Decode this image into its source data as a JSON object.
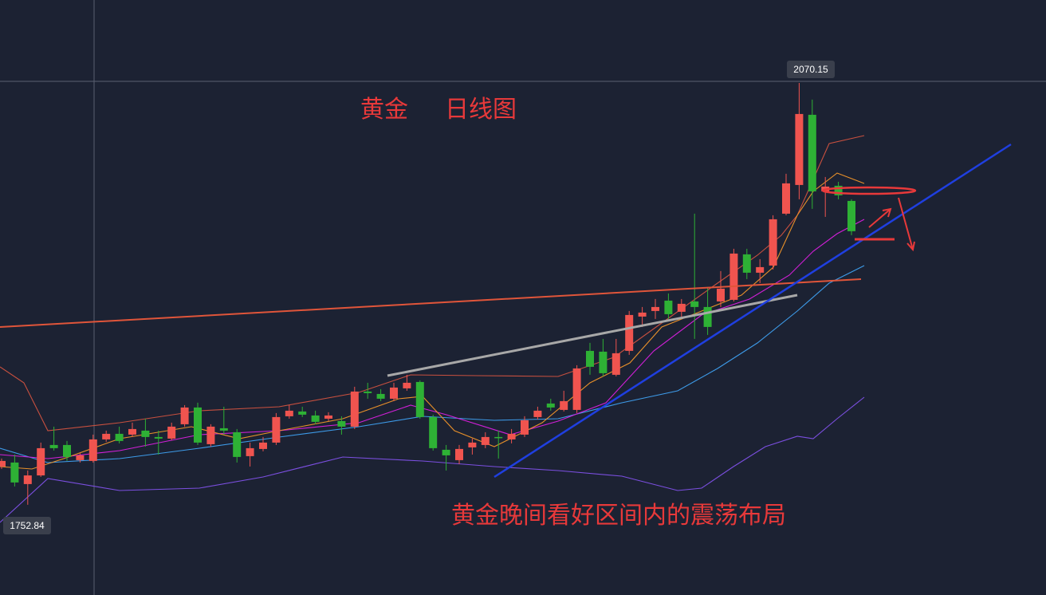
{
  "chart_data": {
    "type": "candlestick",
    "title": "黄金",
    "subtitle": "日线图",
    "annotation": "黄金晚间看好区间内的震荡布局",
    "up_color": "#f0544f",
    "down_color": "#2eb135",
    "ylim": [
      1684.95,
      2132.55
    ],
    "open": [
      1781.6,
      1784.6,
      1768.4,
      1774.9,
      1797.8,
      1797.8,
      1786.4,
      1785.8,
      1802.0,
      1806.2,
      1805.6,
      1808.6,
      1803.8,
      1802.6,
      1813.4,
      1826.0,
      1798.4,
      1810.4,
      1807.4,
      1789.4,
      1794.8,
      1799.6,
      1819.4,
      1823.0,
      1820.0,
      1817.6,
      1815.8,
      1811.6,
      1838.0,
      1836.2,
      1832.6,
      1840.4,
      1845.2,
      1818.8,
      1794.2,
      1786.4,
      1796.0,
      1797.8,
      1803.8,
      1802.0,
      1805.6,
      1818.8,
      1829.0,
      1824.2,
      1824.2,
      1868.6,
      1868.0,
      1850.6,
      1868.6,
      1894.4,
      1898.6,
      1906.4,
      1898.0,
      1905.8,
      1901.6,
      1905.8,
      1907.0,
      1941.2,
      1927.4,
      1932.8,
      1971.8,
      1993.4,
      2046.2,
      1988.6,
      1992.8,
      1981.4
    ],
    "high": [
      1787.6,
      1790.6,
      1778.6,
      1799.6,
      1811.6,
      1800.8,
      1791.8,
      1805.6,
      1808.6,
      1811.6,
      1814.6,
      1817.6,
      1808.6,
      1814.6,
      1827.8,
      1829.6,
      1813.4,
      1826.6,
      1809.8,
      1799.6,
      1803.8,
      1821.8,
      1827.8,
      1826.6,
      1823.6,
      1822.4,
      1819.4,
      1841.6,
      1844.6,
      1839.8,
      1844.6,
      1850.6,
      1846.4,
      1820.6,
      1797.8,
      1797.8,
      1802.6,
      1807.4,
      1808.6,
      1809.8,
      1819.4,
      1826.6,
      1832.6,
      1838.6,
      1857.8,
      1874.6,
      1877.6,
      1877.6,
      1898.6,
      1901.6,
      1907.6,
      1911.8,
      1907.6,
      1971.8,
      1916.6,
      1928.6,
      1945.4,
      1945.4,
      1937.6,
      1970.6,
      2001.8,
      2070.15,
      2057.6,
      1999.4,
      1995.8,
      1982.6
    ],
    "low": [
      1779.8,
      1766.6,
      1752.84,
      1773.8,
      1793.6,
      1785.8,
      1784.6,
      1784.6,
      1800.2,
      1799.0,
      1803.8,
      1796.6,
      1790.6,
      1801.4,
      1811.6,
      1797.8,
      1796.6,
      1805.6,
      1784.6,
      1781.6,
      1793.0,
      1797.8,
      1817.6,
      1818.8,
      1813.4,
      1815.8,
      1805.6,
      1809.8,
      1832.6,
      1830.8,
      1830.8,
      1838.6,
      1817.6,
      1793.6,
      1778.6,
      1783.4,
      1790.6,
      1795.4,
      1787.6,
      1799.0,
      1803.8,
      1817.0,
      1823.6,
      1823.0,
      1821.8,
      1850.6,
      1849.4,
      1849.4,
      1865.6,
      1886.6,
      1892.6,
      1892.6,
      1893.8,
      1877.6,
      1880.6,
      1901.6,
      1905.8,
      1922.6,
      1919.6,
      1929.8,
      1970.6,
      1982.6,
      1975.4,
      1969.4,
      1982.6,
      1955.6
    ],
    "close": [
      1785.8,
      1769.6,
      1774.9,
      1795.4,
      1795.4,
      1788.8,
      1790.0,
      1802.0,
      1806.2,
      1800.8,
      1809.8,
      1803.8,
      1802.6,
      1811.6,
      1826.0,
      1799.6,
      1811.6,
      1808.6,
      1788.8,
      1795.4,
      1799.6,
      1818.8,
      1823.6,
      1820.6,
      1815.2,
      1820.0,
      1811.6,
      1838.0,
      1836.8,
      1832.6,
      1841.0,
      1844.6,
      1818.8,
      1795.4,
      1790.0,
      1794.8,
      1799.6,
      1803.8,
      1803.2,
      1806.2,
      1816.4,
      1823.6,
      1826.0,
      1830.8,
      1855.4,
      1856.6,
      1851.8,
      1866.8,
      1895.6,
      1897.4,
      1901.6,
      1896.2,
      1904.0,
      1901.6,
      1886.6,
      1915.4,
      1941.8,
      1927.4,
      1931.6,
      1967.6,
      1994.6,
      2046.8,
      1988.6,
      1992.2,
      1985.6,
      1958.6
    ]
  }
}
